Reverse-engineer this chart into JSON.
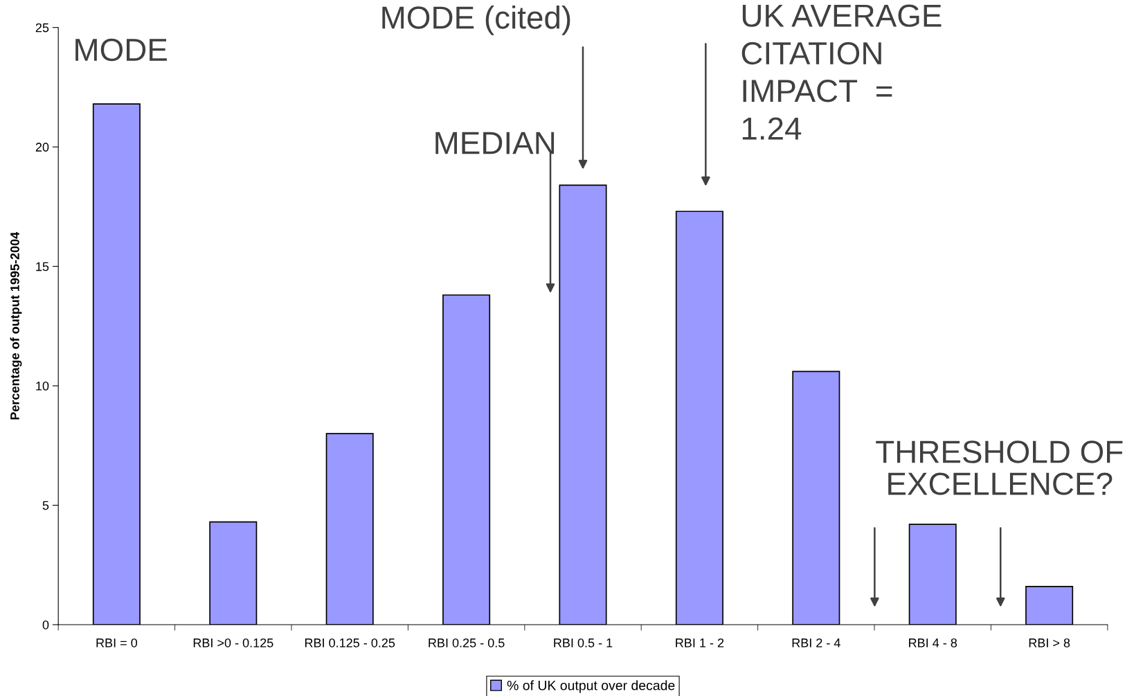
{
  "chart_data": {
    "type": "bar",
    "ylabel": "Percentage of output 1995-2004",
    "categories": [
      "RBI = 0",
      "RBI >0 - 0.125",
      "RBI 0.125 - 0.25",
      "RBI 0.25 - 0.5",
      "RBI 0.5 - 1",
      "RBI 1 - 2",
      "RBI 2 - 4",
      "RBI 4 - 8",
      "RBI > 8"
    ],
    "series": [
      {
        "name": "% of UK output over decade",
        "color": "#9999ff",
        "values": [
          21.8,
          4.3,
          8.0,
          13.8,
          18.4,
          17.3,
          10.6,
          4.2,
          1.6
        ]
      }
    ],
    "ylim": [
      0,
      25
    ],
    "yticks": [
      0,
      5,
      10,
      15,
      20,
      25
    ],
    "grid": false,
    "legend": "bottom",
    "annotations": [
      "MODE",
      "MODE (cited)",
      "MEDIAN",
      "UK AVERAGE\nCITATION\nIMPACT  =\n1.24",
      "THRESHOLD OF\nEXCELLENCE?"
    ]
  }
}
